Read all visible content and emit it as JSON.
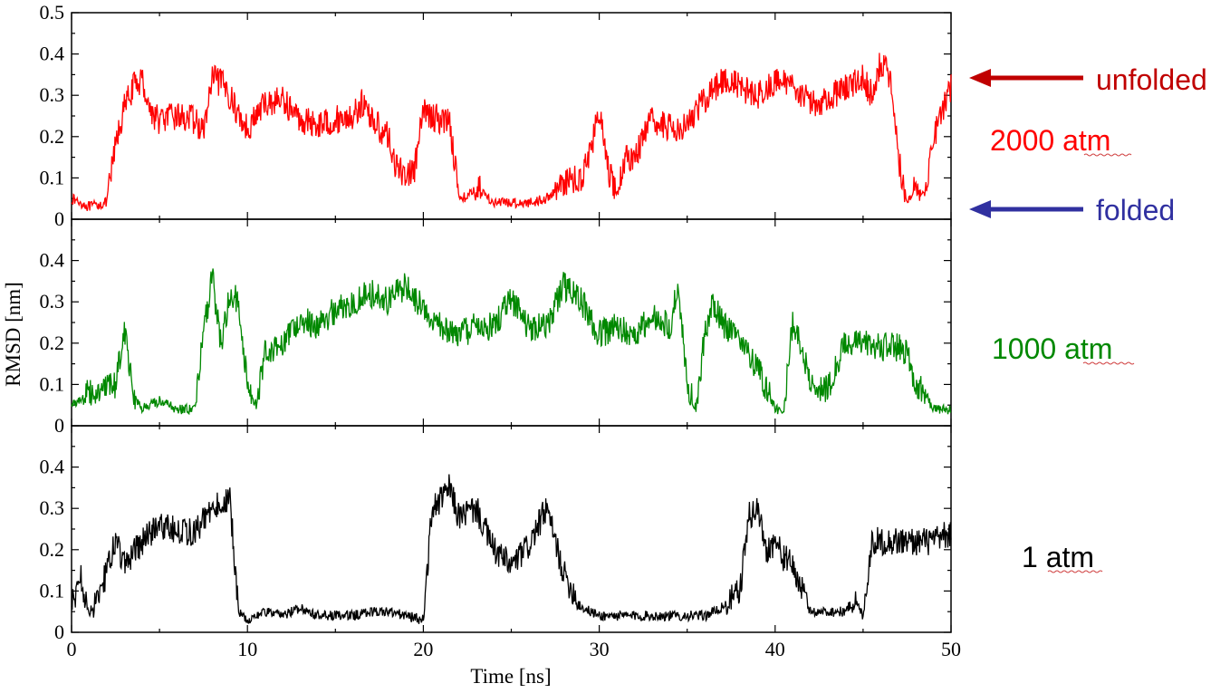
{
  "chart_data": {
    "type": "line",
    "title": "",
    "xlabel": "Time [ns]",
    "ylabel": "RMSD [nm]",
    "xlim": [
      0,
      50
    ],
    "x_ticks": [
      "0",
      "10",
      "20",
      "30",
      "40",
      "50"
    ],
    "grid": false,
    "panels": [
      {
        "label": "2000 atm",
        "color": "#ff0000",
        "ylim": [
          0,
          0.5
        ],
        "y_ticks": [
          "0",
          "0.1",
          "0.2",
          "0.3",
          "0.4",
          "0.5"
        ],
        "x": [
          0,
          1,
          2,
          2.5,
          3,
          3.5,
          4,
          4.5,
          5,
          6,
          7,
          7.5,
          8,
          8.5,
          9,
          9.5,
          10,
          11,
          12,
          13,
          14,
          15,
          16,
          16.5,
          17,
          17.5,
          18,
          18.5,
          19,
          19.5,
          20,
          20.5,
          21,
          21.5,
          22,
          22.5,
          23,
          24,
          25,
          26,
          27,
          28,
          29,
          29.5,
          30,
          30.5,
          31,
          31.5,
          32,
          33,
          34,
          35,
          36,
          37,
          38,
          39,
          40,
          41,
          42,
          43,
          44,
          45,
          45.5,
          46,
          46.5,
          47,
          47.5,
          48,
          48.5,
          49,
          49.5,
          50
        ],
        "values": [
          0.05,
          0.03,
          0.04,
          0.18,
          0.27,
          0.32,
          0.34,
          0.26,
          0.24,
          0.25,
          0.24,
          0.21,
          0.34,
          0.33,
          0.3,
          0.25,
          0.22,
          0.28,
          0.29,
          0.24,
          0.23,
          0.24,
          0.25,
          0.28,
          0.25,
          0.22,
          0.2,
          0.12,
          0.11,
          0.12,
          0.26,
          0.25,
          0.24,
          0.24,
          0.06,
          0.05,
          0.08,
          0.04,
          0.04,
          0.04,
          0.05,
          0.09,
          0.1,
          0.17,
          0.26,
          0.12,
          0.06,
          0.15,
          0.15,
          0.24,
          0.22,
          0.23,
          0.29,
          0.34,
          0.32,
          0.3,
          0.33,
          0.33,
          0.28,
          0.29,
          0.32,
          0.34,
          0.3,
          0.38,
          0.35,
          0.15,
          0.04,
          0.08,
          0.06,
          0.2,
          0.26,
          0.32
        ],
        "legend_style": "annotation"
      },
      {
        "label": "1000 atm",
        "color": "#008800",
        "ylim": [
          0,
          0.5
        ],
        "y_ticks": [
          "0",
          "0.1",
          "0.2",
          "0.3",
          "0.4"
        ],
        "x": [
          0,
          1,
          2,
          2.5,
          3,
          3.5,
          4,
          5,
          6,
          7,
          7.5,
          8,
          8.5,
          9,
          9.5,
          10,
          10.5,
          11,
          12,
          13,
          14,
          15,
          16,
          17,
          18,
          19,
          20,
          21,
          22,
          23,
          24,
          25,
          26,
          27,
          28,
          29,
          30,
          31,
          32,
          33,
          34,
          34.5,
          35,
          35.5,
          36,
          36.5,
          37,
          38,
          39,
          40,
          40.5,
          41,
          41.5,
          42,
          43,
          44,
          45,
          46,
          47,
          47.5,
          48,
          48.5,
          49,
          50
        ],
        "values": [
          0.05,
          0.08,
          0.09,
          0.1,
          0.24,
          0.08,
          0.04,
          0.06,
          0.04,
          0.04,
          0.22,
          0.36,
          0.2,
          0.32,
          0.3,
          0.1,
          0.05,
          0.18,
          0.2,
          0.26,
          0.24,
          0.28,
          0.3,
          0.32,
          0.3,
          0.34,
          0.28,
          0.24,
          0.22,
          0.24,
          0.24,
          0.31,
          0.24,
          0.24,
          0.34,
          0.3,
          0.22,
          0.24,
          0.22,
          0.26,
          0.24,
          0.34,
          0.1,
          0.04,
          0.22,
          0.3,
          0.25,
          0.21,
          0.14,
          0.04,
          0.04,
          0.25,
          0.2,
          0.1,
          0.09,
          0.2,
          0.2,
          0.19,
          0.19,
          0.18,
          0.1,
          0.08,
          0.04,
          0.04
        ],
        "legend_style": "annotation"
      },
      {
        "label": "1 atm",
        "color": "#000000",
        "ylim": [
          0,
          0.5
        ],
        "y_ticks": [
          "0",
          "0.1",
          "0.2",
          "0.3",
          "0.4"
        ],
        "x": [
          0,
          0.5,
          1,
          1.5,
          2,
          2.5,
          3,
          4,
          5,
          6,
          7,
          8,
          9,
          9.5,
          10,
          11,
          12,
          13,
          14,
          15,
          16,
          17,
          18,
          19,
          20,
          20.5,
          21,
          21.5,
          22,
          23,
          24,
          25,
          26,
          27,
          28,
          29,
          30,
          31,
          32,
          33,
          34,
          35,
          36,
          37,
          38,
          38.5,
          39,
          39.5,
          40,
          40.5,
          41,
          42,
          43,
          44,
          44.5,
          45,
          45.5,
          46,
          47,
          48,
          49,
          50
        ],
        "values": [
          0.06,
          0.14,
          0.04,
          0.1,
          0.14,
          0.22,
          0.16,
          0.22,
          0.26,
          0.25,
          0.24,
          0.3,
          0.32,
          0.05,
          0.03,
          0.05,
          0.04,
          0.06,
          0.04,
          0.04,
          0.04,
          0.05,
          0.05,
          0.04,
          0.03,
          0.3,
          0.32,
          0.35,
          0.28,
          0.3,
          0.2,
          0.16,
          0.21,
          0.3,
          0.14,
          0.06,
          0.04,
          0.04,
          0.04,
          0.04,
          0.04,
          0.04,
          0.04,
          0.06,
          0.1,
          0.28,
          0.3,
          0.2,
          0.22,
          0.18,
          0.16,
          0.05,
          0.05,
          0.05,
          0.08,
          0.04,
          0.22,
          0.22,
          0.22,
          0.22,
          0.22,
          0.24
        ],
        "legend_style": "annotation"
      }
    ],
    "annotations": [
      {
        "text": "unfolded",
        "color": "#c00000",
        "arrow_color": "#c00000",
        "panel": 0,
        "points_to_y": 0.34
      },
      {
        "text": "folded",
        "color": "#3030a0",
        "arrow_color": "#3030a0",
        "panel": 0,
        "points_to_y": 0.025
      }
    ]
  }
}
